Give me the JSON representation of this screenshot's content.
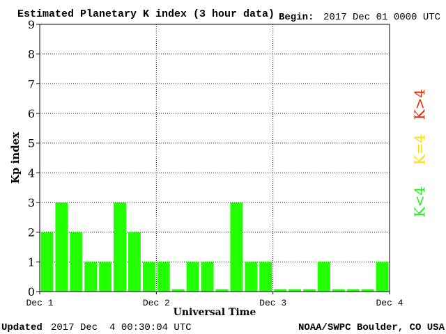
{
  "header": {
    "title": "Estimated Planetary K index (3 hour data)",
    "begin_label": "Begin:",
    "begin_value": "2017 Dec 01 0000 UTC"
  },
  "footer": {
    "updated_label": "Updated",
    "updated_value": "2017 Dec  4 00:30:04 UTC",
    "source": "NOAA/SWPC Boulder, CO USA"
  },
  "legend": {
    "items": [
      {
        "label": "K<4",
        "color": "#22ee22"
      },
      {
        "label": "K=4",
        "color": "#ffdd00"
      },
      {
        "label": "K>4",
        "color": "#ee2200"
      }
    ]
  },
  "colors": {
    "bar_low": "#22ff00",
    "bar_equal": "#ffdd00",
    "bar_high": "#ee2200"
  },
  "chart_data": {
    "type": "bar",
    "xlabel": "Universal Time",
    "ylabel": "Kp index",
    "ylim": [
      0,
      9
    ],
    "yticks": [
      0,
      1,
      2,
      3,
      4,
      5,
      6,
      7,
      8,
      9
    ],
    "x_tick_labels": [
      "Dec 1",
      "Dec 2",
      "Dec 3",
      "Dec 4"
    ],
    "bar_interval_hours": 3,
    "x_range_days": 3,
    "grid": true,
    "values": [
      2,
      3,
      2,
      1,
      1,
      3,
      2,
      1,
      1,
      0,
      1,
      1,
      0,
      3,
      1,
      1,
      0,
      0,
      0,
      1,
      0,
      0,
      0,
      1
    ]
  }
}
